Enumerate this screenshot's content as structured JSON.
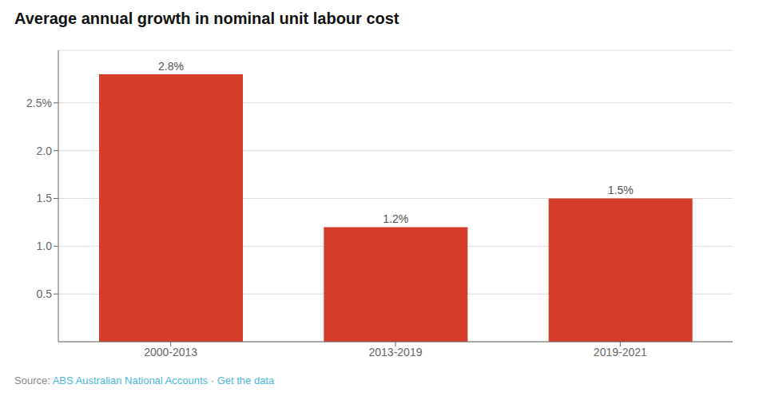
{
  "chart_data": {
    "type": "bar",
    "title": "Average annual growth in nominal unit labour cost",
    "categories": [
      "2000-2013",
      "2013-2019",
      "2019-2021"
    ],
    "values": [
      2.8,
      1.2,
      1.5
    ],
    "value_labels": [
      "2.8%",
      "1.2%",
      "1.5%"
    ],
    "data_labels": true,
    "color": "#d63c2a",
    "ylim": [
      0,
      3.05
    ],
    "yticks": [
      0.5,
      {
        "value": 1,
        "label": "1.0"
      },
      1.5,
      {
        "value": 2,
        "label": "2.0"
      },
      {
        "value": 2.5,
        "label": "2.5%"
      }
    ],
    "grid": true,
    "annotations": [
      {
        "text": "Source: ",
        "color": "#888888"
      },
      {
        "text": "ABS Australian National Accounts",
        "color": "#4ab8d8"
      },
      {
        "text": " · ",
        "color": "#888888"
      },
      {
        "text": "Get the data",
        "color": "#4ab8d8"
      }
    ]
  }
}
